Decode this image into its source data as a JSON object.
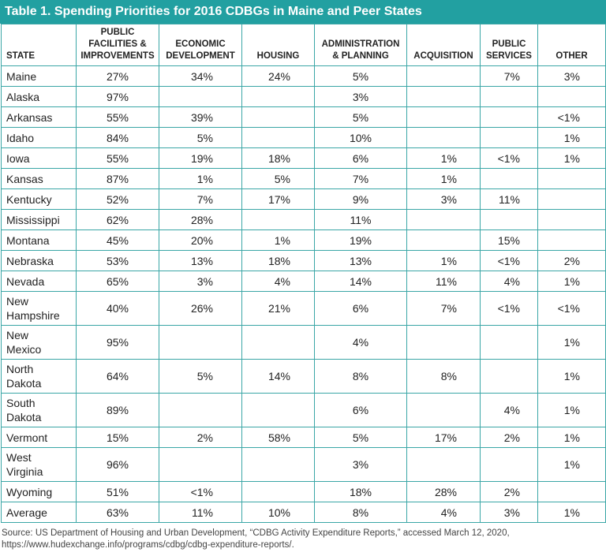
{
  "title": "Table 1. Spending Priorities for 2016 CDBGs in Maine and Peer States",
  "table": {
    "columns": [
      "STATE",
      "PUBLIC FACILITIES & IMPROVEMENTS",
      "ECONOMIC DEVELOPMENT",
      "HOUSING",
      "ADMINISTRATION & PLANNING",
      "ACQUISITION",
      "PUBLIC SERVICES",
      "OTHER"
    ],
    "rows": [
      [
        "Maine",
        "27%",
        "34%",
        "24%",
        "5%",
        null,
        "7%",
        "3%"
      ],
      [
        "Alaska",
        "97%",
        null,
        null,
        "3%",
        null,
        null,
        null
      ],
      [
        "Arkansas",
        "55%",
        "39%",
        null,
        "5%",
        null,
        null,
        "<1%"
      ],
      [
        "Idaho",
        "84%",
        "5%",
        null,
        "10%",
        null,
        null,
        "1%"
      ],
      [
        "Iowa",
        "55%",
        "19%",
        "18%",
        "6%",
        "1%",
        "<1%",
        "1%"
      ],
      [
        "Kansas",
        "87%",
        "1%",
        "5%",
        "7%",
        "1%",
        null,
        null
      ],
      [
        "Kentucky",
        "52%",
        "7%",
        "17%",
        "9%",
        "3%",
        "11%",
        null
      ],
      [
        "Mississippi",
        "62%",
        "28%",
        null,
        "11%",
        null,
        null,
        null
      ],
      [
        "Montana",
        "45%",
        "20%",
        "1%",
        "19%",
        null,
        "15%",
        null
      ],
      [
        "Nebraska",
        "53%",
        "13%",
        "18%",
        "13%",
        "1%",
        "<1%",
        "2%"
      ],
      [
        "Nevada",
        "65%",
        "3%",
        "4%",
        "14%",
        "11%",
        "4%",
        "1%"
      ],
      [
        "New Hampshire",
        "40%",
        "26%",
        "21%",
        "6%",
        "7%",
        "<1%",
        "<1%"
      ],
      [
        "New Mexico",
        "95%",
        null,
        null,
        "4%",
        null,
        null,
        "1%"
      ],
      [
        "North Dakota",
        "64%",
        "5%",
        "14%",
        "8%",
        "8%",
        null,
        "1%"
      ],
      [
        "South Dakota",
        "89%",
        null,
        null,
        "6%",
        null,
        "4%",
        "1%"
      ],
      [
        "Vermont",
        "15%",
        "2%",
        "58%",
        "5%",
        "17%",
        "2%",
        "1%"
      ],
      [
        "West Virginia",
        "96%",
        null,
        null,
        "3%",
        null,
        null,
        "1%"
      ],
      [
        "Wyoming",
        "51%",
        "<1%",
        null,
        "18%",
        "28%",
        "2%",
        null
      ],
      [
        "Average",
        "63%",
        "11%",
        "10%",
        "8%",
        "4%",
        "3%",
        "1%"
      ]
    ]
  },
  "source": "Source: US Department of Housing and Urban Development, “CDBG Activity Expenditure Reports,” accessed March 12, 2020, https://www.hudexchange.info/programs/cdbg/cdbg-expenditure-reports/."
}
